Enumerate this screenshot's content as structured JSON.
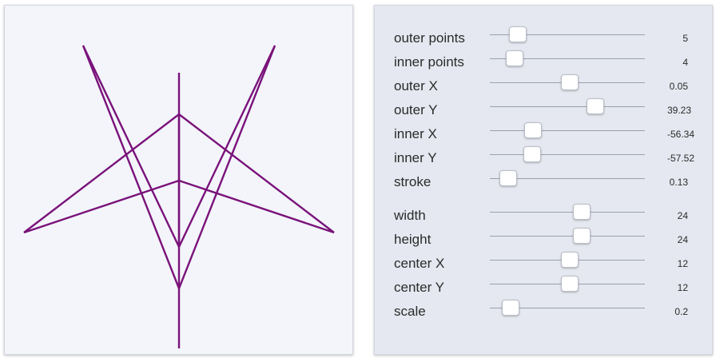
{
  "colors": {
    "star_stroke": "#7a127a",
    "canvas_bg": "#f3f5fa",
    "panel_bg": "#e5e8f0"
  },
  "controls": [
    {
      "id": "outer-points",
      "label": "outer points",
      "value": "5",
      "min": 1,
      "max": 40,
      "current": 5
    },
    {
      "id": "inner-points",
      "label": "inner points",
      "value": "4",
      "min": 1,
      "max": 40,
      "current": 4
    },
    {
      "id": "outer-x",
      "label": "outer X",
      "value": "0.05",
      "min": -100,
      "max": 100,
      "current": 0.05
    },
    {
      "id": "outer-y",
      "label": "outer Y",
      "value": "39.23",
      "min": -100,
      "max": 100,
      "current": 39.23
    },
    {
      "id": "inner-x",
      "label": "inner X",
      "value": "-56.34",
      "min": -100,
      "max": 100,
      "current": -56.34
    },
    {
      "id": "inner-y",
      "label": "inner Y",
      "value": "-57.52",
      "min": -100,
      "max": 100,
      "current": -57.52
    },
    {
      "id": "stroke",
      "label": "stroke",
      "value": "0.13",
      "min": 0,
      "max": 4,
      "current": 0.13
    },
    {
      "id": "width",
      "label": "width",
      "value": "24",
      "min": 1,
      "max": 40,
      "current": 24
    },
    {
      "id": "height",
      "label": "height",
      "value": "24",
      "min": 1,
      "max": 40,
      "current": 24
    },
    {
      "id": "center-x",
      "label": "center X",
      "value": "12",
      "min": 0,
      "max": 24,
      "current": 12
    },
    {
      "id": "center-y",
      "label": "center Y",
      "value": "12",
      "min": 0,
      "max": 24,
      "current": 12
    },
    {
      "id": "scale",
      "label": "scale",
      "value": "0.2",
      "min": 0,
      "max": 4,
      "current": 0.2
    }
  ]
}
